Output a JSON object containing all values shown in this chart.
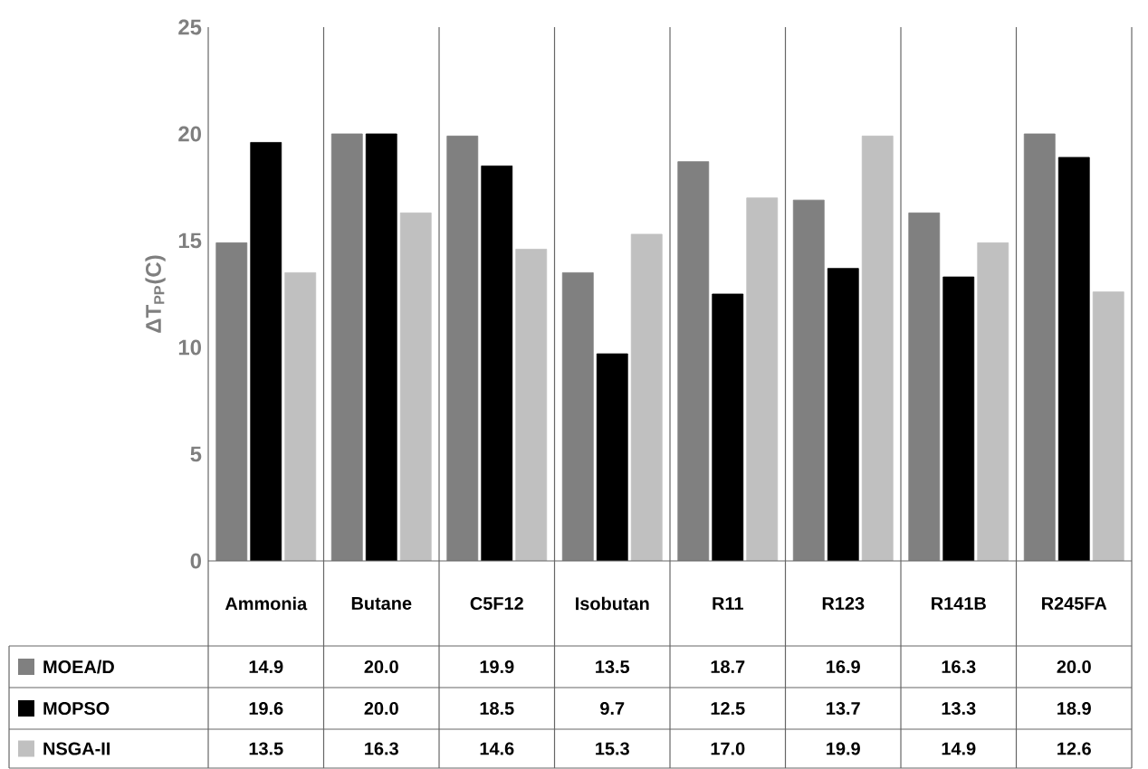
{
  "chart_data": {
    "type": "bar",
    "ylabel": "ΔT$_{PP}$(C)",
    "categories": [
      "Ammonia",
      "Butane",
      "C5F12",
      "Isobutan",
      "R11",
      "R123",
      "R141B",
      "R245FA"
    ],
    "series": [
      {
        "name": "MOEA/D",
        "color": "#808080",
        "values": [
          14.9,
          20.0,
          19.9,
          13.5,
          18.7,
          16.9,
          16.3,
          20.0
        ],
        "value_labels": [
          "14.9",
          "20.0",
          "19.9",
          "13.5",
          "18.7",
          "16.9",
          "16.3",
          "20.0"
        ]
      },
      {
        "name": "MOPSO",
        "color": "#000000",
        "values": [
          19.6,
          20.0,
          18.5,
          9.7,
          12.5,
          13.7,
          13.3,
          18.9
        ],
        "value_labels": [
          "19.6",
          "20.0",
          "18.5",
          "9.7",
          "12.5",
          "13.7",
          "13.3",
          "18.9"
        ]
      },
      {
        "name": "NSGA-II",
        "color": "#c0c0c0",
        "values": [
          13.5,
          16.3,
          14.6,
          15.3,
          17.0,
          19.9,
          14.9,
          12.6
        ],
        "value_labels": [
          "13.5",
          "16.3",
          "14.6",
          "15.3",
          "17.0",
          "19.9",
          "14.9",
          "12.6"
        ]
      }
    ],
    "ylim": [
      0,
      25
    ],
    "yticks": [
      0,
      5,
      10,
      15,
      20,
      25
    ],
    "legend": "bottom"
  }
}
